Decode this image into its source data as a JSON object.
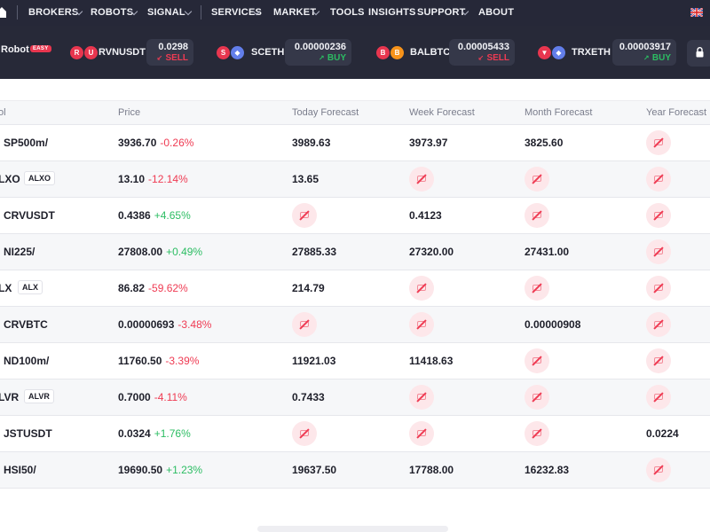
{
  "nav": {
    "items": [
      {
        "label": "BROKERS",
        "dropdown": true
      },
      {
        "label": "ROBOTS",
        "dropdown": true
      },
      {
        "label": "SIGNAL",
        "dropdown": true
      },
      {
        "label": "SERVICES",
        "dropdown": true
      },
      {
        "label": "MARKET",
        "dropdown": true
      },
      {
        "label": "TOOLS",
        "dropdown": false
      },
      {
        "label": "INSIGHTS",
        "dropdown": false
      },
      {
        "label": "SUPPORT",
        "dropdown": true
      },
      {
        "label": "ABOUT",
        "dropdown": false
      }
    ]
  },
  "ticker": {
    "robot_label": "Robot",
    "easy_badge": "EASY",
    "pairs": [
      {
        "coins": [
          "R",
          "U"
        ],
        "coin_colors": [
          "#e8364f",
          "#e8364f"
        ],
        "name": "RVNUSDT",
        "price": "0.0298",
        "signal": "SELL",
        "signal_icon": "↙"
      },
      {
        "coins": [
          "S",
          "◆"
        ],
        "coin_colors": [
          "#e8364f",
          "#627eea"
        ],
        "name": "SCETH",
        "price": "0.00000236",
        "signal": "BUY",
        "signal_icon": "↗"
      },
      {
        "coins": [
          "B",
          "B"
        ],
        "coin_colors": [
          "#e8364f",
          "#f7931a"
        ],
        "name": "BALBTC",
        "price": "0.00005433",
        "signal": "SELL",
        "signal_icon": "↙"
      },
      {
        "coins": [
          "▼",
          "◆"
        ],
        "coin_colors": [
          "#e8364f",
          "#627eea"
        ],
        "name": "TRXETH",
        "price": "0.00003917",
        "signal": "BUY",
        "signal_icon": "↗"
      }
    ],
    "colors": {
      "sell": "#ef3b53",
      "buy": "#2cbd63"
    }
  },
  "table": {
    "headers": [
      "ol",
      "Price",
      "Today Forecast",
      "Week Forecast",
      "Month Forecast",
      "Year Forecast"
    ],
    "rows": [
      {
        "symbol": "SP500m/",
        "badge": "",
        "price": "3936.70",
        "change": "-0.26%",
        "dir": "neg",
        "today": "3989.63",
        "week": "3973.97",
        "month": "3825.60",
        "year": ""
      },
      {
        "symbol": "LXO",
        "badge": "ALXO",
        "price": "13.10",
        "change": "-12.14%",
        "dir": "neg",
        "today": "13.65",
        "week": "",
        "month": "",
        "year": ""
      },
      {
        "symbol": "CRVUSDT",
        "badge": "",
        "price": "0.4386",
        "change": "+4.65%",
        "dir": "pos",
        "today": "",
        "week": "0.4123",
        "month": "",
        "year": ""
      },
      {
        "symbol": "NI225/",
        "badge": "",
        "price": "27808.00",
        "change": "+0.49%",
        "dir": "pos",
        "today": "27885.33",
        "week": "27320.00",
        "month": "27431.00",
        "year": ""
      },
      {
        "symbol": "LX",
        "badge": "ALX",
        "price": "86.82",
        "change": "-59.62%",
        "dir": "neg",
        "today": "214.79",
        "week": "",
        "month": "",
        "year": ""
      },
      {
        "symbol": "CRVBTC",
        "badge": "",
        "price": "0.00000693",
        "change": "-3.48%",
        "dir": "neg",
        "today": "",
        "week": "",
        "month": "0.00000908",
        "year": ""
      },
      {
        "symbol": "ND100m/",
        "badge": "",
        "price": "11760.50",
        "change": "-3.39%",
        "dir": "neg",
        "today": "11921.03",
        "week": "11418.63",
        "month": "",
        "year": ""
      },
      {
        "symbol": "LVR",
        "badge": "ALVR",
        "price": "0.7000",
        "change": "-4.11%",
        "dir": "neg",
        "today": "0.7433",
        "week": "",
        "month": "",
        "year": ""
      },
      {
        "symbol": "JSTUSDT",
        "badge": "",
        "price": "0.0324",
        "change": "+1.76%",
        "dir": "pos",
        "today": "",
        "week": "",
        "month": "",
        "year": "0.0224"
      },
      {
        "symbol": "HSI50/",
        "badge": "",
        "price": "19690.50",
        "change": "+1.23%",
        "dir": "pos",
        "today": "19637.50",
        "week": "17788.00",
        "month": "16232.83",
        "year": ""
      }
    ],
    "locked_icon": "locked-forecast-icon"
  }
}
